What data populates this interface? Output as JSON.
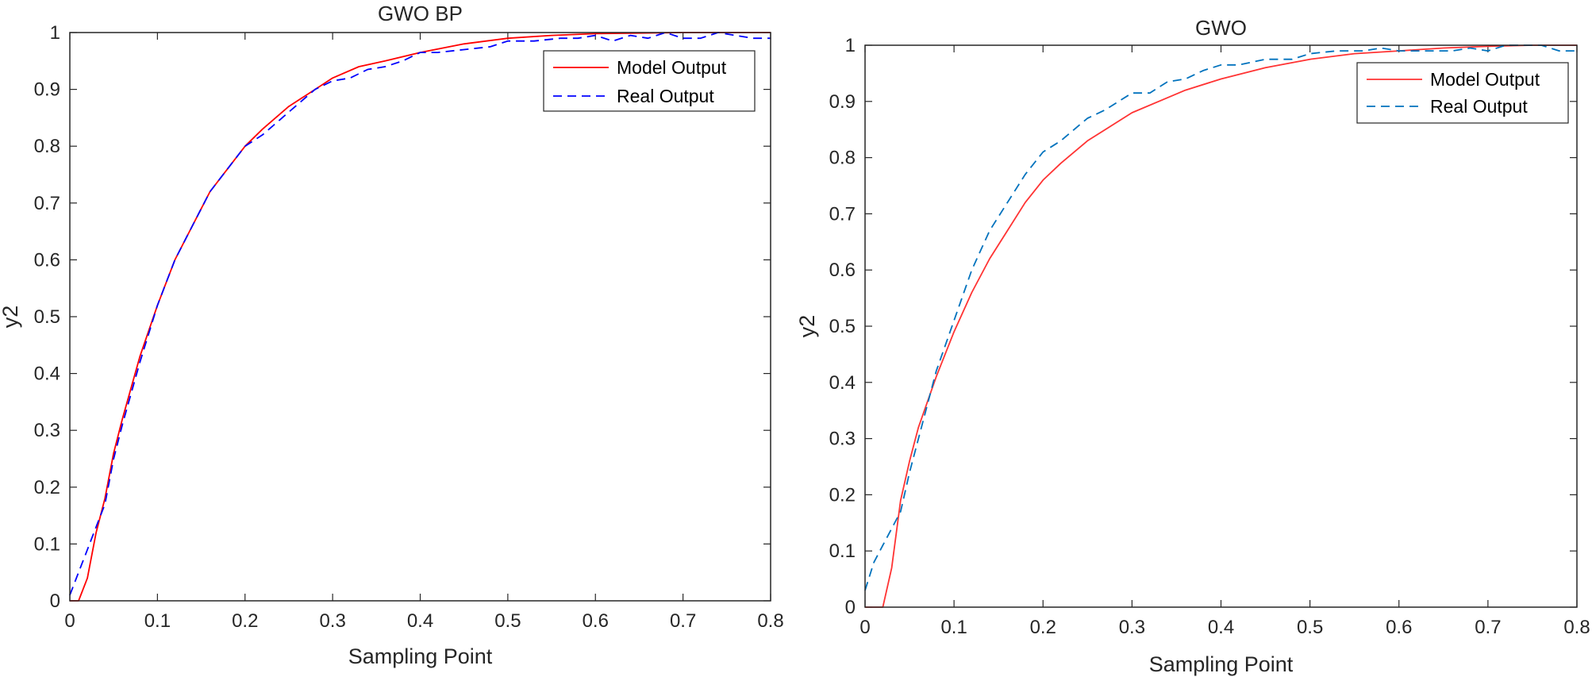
{
  "chart_data": [
    {
      "type": "line",
      "title": "GWO BP",
      "xlabel": "Sampling Point",
      "ylabel": "y2",
      "xlim": [
        0,
        0.8
      ],
      "ylim": [
        0,
        1
      ],
      "xticks": [
        "0",
        "0.1",
        "0.2",
        "0.3",
        "0.4",
        "0.5",
        "0.6",
        "0.7",
        "0.8"
      ],
      "yticks": [
        "0",
        "0.1",
        "0.2",
        "0.3",
        "0.4",
        "0.5",
        "0.6",
        "0.7",
        "0.8",
        "0.9",
        "1"
      ],
      "grid": false,
      "legend_position": "top-right",
      "series": [
        {
          "name": "Model Output",
          "color": "#ff0000",
          "style": "solid",
          "x": [
            0,
            0.01,
            0.02,
            0.03,
            0.04,
            0.05,
            0.06,
            0.08,
            0.1,
            0.12,
            0.14,
            0.16,
            0.18,
            0.2,
            0.22,
            0.25,
            0.28,
            0.3,
            0.33,
            0.36,
            0.4,
            0.45,
            0.5,
            0.55,
            0.6,
            0.65,
            0.7,
            0.75,
            0.8
          ],
          "y": [
            0,
            0,
            0.04,
            0.12,
            0.18,
            0.26,
            0.32,
            0.43,
            0.52,
            0.6,
            0.66,
            0.72,
            0.76,
            0.8,
            0.83,
            0.87,
            0.9,
            0.92,
            0.94,
            0.95,
            0.965,
            0.98,
            0.99,
            0.995,
            0.998,
            0.999,
            1.0,
            1.0,
            1.0
          ]
        },
        {
          "name": "Real Output",
          "color": "#0000ff",
          "style": "dashed",
          "x": [
            0,
            0.01,
            0.02,
            0.03,
            0.04,
            0.05,
            0.06,
            0.08,
            0.1,
            0.12,
            0.14,
            0.16,
            0.18,
            0.2,
            0.22,
            0.25,
            0.28,
            0.3,
            0.32,
            0.34,
            0.36,
            0.38,
            0.4,
            0.42,
            0.45,
            0.48,
            0.5,
            0.53,
            0.56,
            0.58,
            0.6,
            0.62,
            0.64,
            0.66,
            0.68,
            0.7,
            0.72,
            0.74,
            0.76,
            0.78,
            0.8
          ],
          "y": [
            0.01,
            0.05,
            0.09,
            0.13,
            0.17,
            0.25,
            0.31,
            0.42,
            0.52,
            0.6,
            0.66,
            0.72,
            0.76,
            0.8,
            0.82,
            0.86,
            0.9,
            0.915,
            0.92,
            0.935,
            0.94,
            0.95,
            0.965,
            0.965,
            0.97,
            0.975,
            0.985,
            0.985,
            0.99,
            0.99,
            0.995,
            0.985,
            0.995,
            0.99,
            1.0,
            0.99,
            0.99,
            1.0,
            0.995,
            0.99,
            0.99
          ]
        }
      ]
    },
    {
      "type": "line",
      "title": "GWO",
      "xlabel": "Sampling Point",
      "ylabel": "y2",
      "xlim": [
        0,
        0.8
      ],
      "ylim": [
        0,
        1
      ],
      "xticks": [
        "0",
        "0.1",
        "0.2",
        "0.3",
        "0.4",
        "0.5",
        "0.6",
        "0.7",
        "0.8"
      ],
      "yticks": [
        "0",
        "0.1",
        "0.2",
        "0.3",
        "0.4",
        "0.5",
        "0.6",
        "0.7",
        "0.8",
        "0.9",
        "1"
      ],
      "grid": false,
      "legend_position": "top-right",
      "series": [
        {
          "name": "Model Output",
          "color": "#ff3333",
          "style": "solid",
          "x": [
            0,
            0.01,
            0.02,
            0.03,
            0.04,
            0.05,
            0.06,
            0.08,
            0.1,
            0.12,
            0.14,
            0.16,
            0.18,
            0.2,
            0.22,
            0.25,
            0.28,
            0.3,
            0.33,
            0.36,
            0.4,
            0.45,
            0.5,
            0.55,
            0.6,
            0.65,
            0.7,
            0.75,
            0.8
          ],
          "y": [
            0,
            0,
            0,
            0.07,
            0.19,
            0.26,
            0.32,
            0.41,
            0.49,
            0.56,
            0.62,
            0.67,
            0.72,
            0.76,
            0.79,
            0.83,
            0.86,
            0.88,
            0.9,
            0.92,
            0.94,
            0.96,
            0.975,
            0.985,
            0.99,
            0.995,
            0.998,
            1.0,
            1.0
          ]
        },
        {
          "name": "Real Output",
          "color": "#0072bd",
          "style": "dashed",
          "x": [
            0,
            0.01,
            0.02,
            0.03,
            0.04,
            0.05,
            0.06,
            0.08,
            0.1,
            0.12,
            0.14,
            0.16,
            0.18,
            0.2,
            0.22,
            0.25,
            0.27,
            0.3,
            0.32,
            0.34,
            0.36,
            0.38,
            0.4,
            0.42,
            0.45,
            0.48,
            0.5,
            0.53,
            0.56,
            0.58,
            0.6,
            0.62,
            0.64,
            0.66,
            0.68,
            0.7,
            0.72,
            0.74,
            0.76,
            0.78,
            0.8
          ],
          "y": [
            0.03,
            0.08,
            0.11,
            0.14,
            0.17,
            0.24,
            0.3,
            0.42,
            0.51,
            0.6,
            0.67,
            0.72,
            0.77,
            0.81,
            0.83,
            0.87,
            0.885,
            0.915,
            0.915,
            0.935,
            0.94,
            0.955,
            0.965,
            0.965,
            0.975,
            0.975,
            0.985,
            0.99,
            0.99,
            0.995,
            0.99,
            0.99,
            0.99,
            0.99,
            0.995,
            0.99,
            1.0,
            1.0,
            1.0,
            0.99,
            0.99
          ]
        }
      ]
    }
  ]
}
